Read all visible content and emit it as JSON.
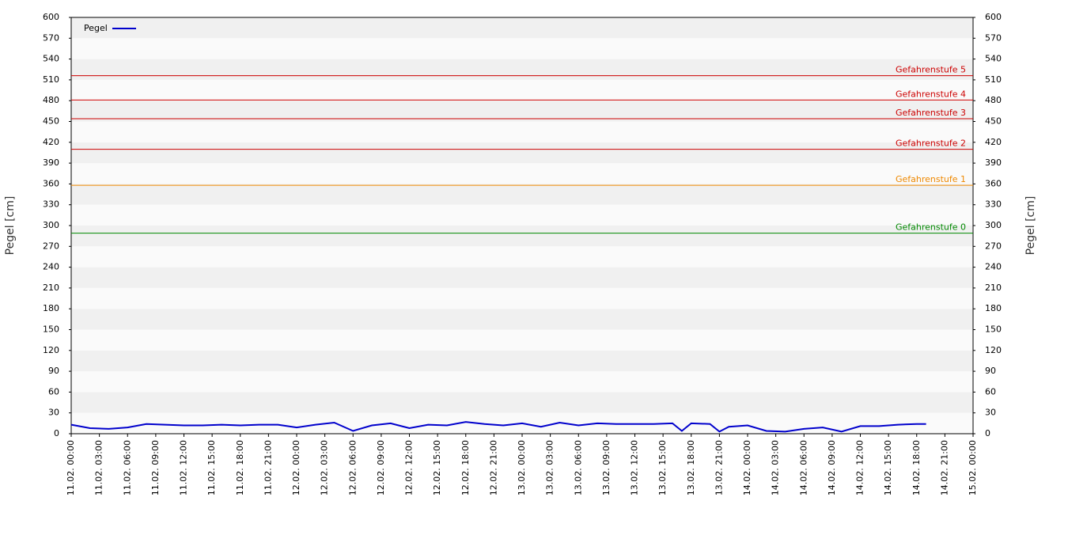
{
  "chart_data": {
    "type": "line",
    "y_label": "Pegel [cm]",
    "y2_label": "Pegel [cm]",
    "ylim": [
      0,
      600
    ],
    "yticks": [
      0,
      30,
      60,
      90,
      120,
      150,
      180,
      210,
      240,
      270,
      300,
      330,
      360,
      390,
      420,
      450,
      480,
      510,
      540,
      570,
      600
    ],
    "y2lim": [
      0,
      600
    ],
    "y2ticks": [
      0,
      30,
      60,
      90,
      120,
      150,
      180,
      210,
      240,
      270,
      300,
      330,
      360,
      390,
      420,
      450,
      480,
      510,
      540,
      570,
      600
    ],
    "xlim": [
      "11.02. 00:00",
      "15.02. 00:00"
    ],
    "xticks": [
      "11.02. 00:00",
      "11.02. 03:00",
      "11.02. 06:00",
      "11.02. 09:00",
      "11.02. 12:00",
      "11.02. 15:00",
      "11.02. 18:00",
      "11.02. 21:00",
      "12.02. 00:00",
      "12.02. 03:00",
      "12.02. 06:00",
      "12.02. 09:00",
      "12.02. 12:00",
      "12.02. 15:00",
      "12.02. 18:00",
      "12.02. 21:00",
      "13.02. 00:00",
      "13.02. 03:00",
      "13.02. 06:00",
      "13.02. 09:00",
      "13.02. 12:00",
      "13.02. 15:00",
      "13.02. 18:00",
      "13.02. 21:00",
      "14.02. 00:00",
      "14.02. 03:00",
      "14.02. 06:00",
      "14.02. 09:00",
      "14.02. 12:00",
      "14.02. 15:00",
      "14.02. 18:00",
      "14.02. 21:00",
      "15.02. 00:00"
    ],
    "legend": "top-left",
    "series": [
      {
        "name": "Pegel",
        "color": "#0000cc",
        "x": [
          "11.02. 00:00",
          "11.02. 02:00",
          "11.02. 04:00",
          "11.02. 06:00",
          "11.02. 08:00",
          "11.02. 10:00",
          "11.02. 12:00",
          "11.02. 14:00",
          "11.02. 16:00",
          "11.02. 18:00",
          "11.02. 20:00",
          "11.02. 22:00",
          "12.02. 00:00",
          "12.02. 02:00",
          "12.02. 04:00",
          "12.02. 06:00",
          "12.02. 08:00",
          "12.02. 10:00",
          "12.02. 12:00",
          "12.02. 14:00",
          "12.02. 16:00",
          "12.02. 18:00",
          "12.02. 20:00",
          "12.02. 22:00",
          "13.02. 00:00",
          "13.02. 02:00",
          "13.02. 04:00",
          "13.02. 06:00",
          "13.02. 08:00",
          "13.02. 10:00",
          "13.02. 12:00",
          "13.02. 14:00",
          "13.02. 16:00",
          "13.02. 17:00",
          "13.02. 18:00",
          "13.02. 20:00",
          "13.02. 21:00",
          "13.02. 22:00",
          "14.02. 00:00",
          "14.02. 02:00",
          "14.02. 04:00",
          "14.02. 06:00",
          "14.02. 08:00",
          "14.02. 10:00",
          "14.02. 12:00",
          "14.02. 14:00",
          "14.02. 16:00",
          "14.02. 18:00",
          "14.02. 19:00"
        ],
        "values": [
          13,
          8,
          7,
          9,
          14,
          13,
          12,
          12,
          13,
          12,
          13,
          13,
          9,
          13,
          16,
          4,
          12,
          15,
          8,
          13,
          12,
          17,
          14,
          12,
          15,
          10,
          16,
          12,
          15,
          14,
          14,
          14,
          15,
          4,
          15,
          14,
          3,
          10,
          12,
          4,
          3,
          7,
          9,
          3,
          11,
          11,
          13,
          14,
          14
        ]
      }
    ],
    "thresholds": [
      {
        "label": "Gefahrenstufe 5",
        "value": 516,
        "color": "#cc0000"
      },
      {
        "label": "Gefahrenstufe 4",
        "value": 481,
        "color": "#cc0000"
      },
      {
        "label": "Gefahrenstufe 3",
        "value": 454,
        "color": "#cc0000"
      },
      {
        "label": "Gefahrenstufe 2",
        "value": 410,
        "color": "#cc0000"
      },
      {
        "label": "Gefahrenstufe 1",
        "value": 358,
        "color": "#ee8800"
      },
      {
        "label": "Gefahrenstufe 0",
        "value": 289,
        "color": "#008800"
      }
    ]
  }
}
